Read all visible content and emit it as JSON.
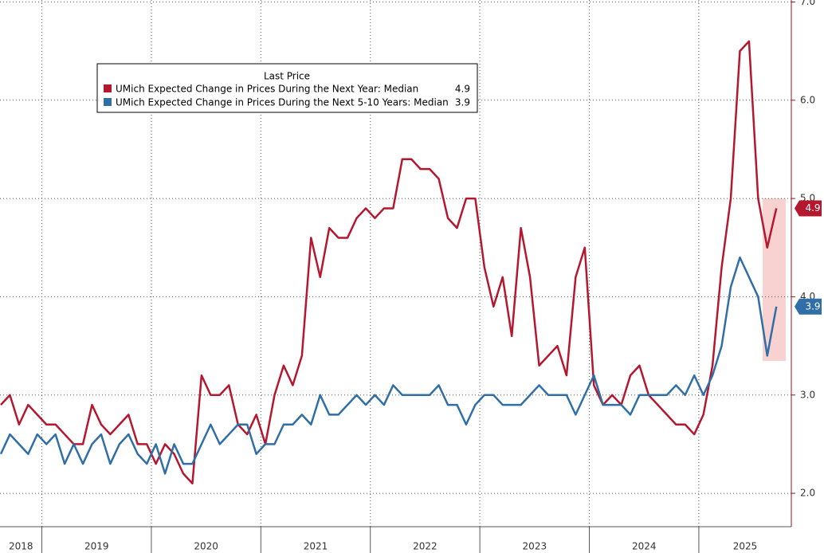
{
  "chart_data": {
    "type": "line",
    "categories": [
      null,
      null,
      null,
      null,
      null,
      null,
      null,
      null,
      null,
      null,
      null,
      null,
      null,
      null,
      null,
      null,
      null,
      null,
      null,
      null,
      null,
      null,
      null,
      null,
      null,
      null,
      null,
      null,
      null,
      null,
      null,
      null,
      null,
      null,
      null,
      null,
      null,
      null,
      null,
      null,
      null,
      null,
      null,
      null,
      null,
      null,
      null,
      null,
      null,
      null,
      null,
      null,
      null,
      null,
      null,
      null,
      null,
      null,
      null,
      null,
      null,
      null,
      null,
      null,
      null,
      null,
      null,
      null,
      null,
      null,
      null,
      null,
      null,
      null,
      null,
      null,
      null,
      null,
      null,
      null,
      null,
      null,
      null,
      null,
      null,
      null
    ],
    "year_labels": [
      "2018",
      "2019",
      "2020",
      "2021",
      "2022",
      "2023",
      "2024",
      "2025"
    ],
    "xticks": [
      5,
      17,
      29,
      41,
      53,
      65,
      77
    ],
    "legend_title": "Last Price",
    "series": [
      {
        "name": "UMich Expected Change in Prices During the Next Year: Median",
        "color": "#b5172f",
        "values": [
          2.9,
          3.0,
          2.7,
          2.9,
          2.8,
          2.7,
          2.7,
          2.6,
          2.5,
          2.5,
          2.9,
          2.7,
          2.6,
          2.7,
          2.8,
          2.5,
          2.5,
          2.3,
          2.5,
          2.4,
          2.2,
          2.1,
          3.2,
          3.0,
          3.0,
          3.1,
          2.7,
          2.6,
          2.8,
          2.5,
          3.0,
          3.3,
          3.1,
          3.4,
          4.6,
          4.2,
          4.7,
          4.6,
          4.6,
          4.8,
          4.9,
          4.8,
          4.9,
          4.9,
          5.4,
          5.4,
          5.3,
          5.3,
          5.2,
          4.8,
          4.7,
          5.0,
          5.0,
          4.3,
          3.9,
          4.2,
          3.6,
          4.7,
          4.2,
          3.3,
          3.4,
          3.5,
          3.2,
          4.2,
          4.5,
          3.1,
          2.9,
          3.0,
          2.9,
          3.2,
          3.3,
          3.0,
          2.9,
          2.8,
          2.7,
          2.7,
          2.6,
          2.8,
          3.3,
          4.3,
          5.0,
          6.5,
          6.6,
          5.0,
          4.5,
          4.9
        ]
      },
      {
        "name": "UMich Expected Change in Prices During the Next 5-10 Years: Median",
        "color": "#2f6ea6",
        "values": [
          2.4,
          2.6,
          2.5,
          2.4,
          2.6,
          2.5,
          2.6,
          2.3,
          2.5,
          2.3,
          2.5,
          2.6,
          2.3,
          2.5,
          2.6,
          2.4,
          2.3,
          2.5,
          2.2,
          2.5,
          2.3,
          2.3,
          2.5,
          2.7,
          2.5,
          2.6,
          2.7,
          2.7,
          2.4,
          2.5,
          2.5,
          2.7,
          2.7,
          2.8,
          2.7,
          3.0,
          2.8,
          2.8,
          2.9,
          3.0,
          2.9,
          3.0,
          2.9,
          3.1,
          3.0,
          3.0,
          3.0,
          3.0,
          3.1,
          2.9,
          2.9,
          2.7,
          2.9,
          3.0,
          3.0,
          2.9,
          2.9,
          2.9,
          3.0,
          3.1,
          3.0,
          3.0,
          3.0,
          2.8,
          3.0,
          3.2,
          2.9,
          2.9,
          2.9,
          2.8,
          3.0,
          3.0,
          3.0,
          3.0,
          3.1,
          3.0,
          3.2,
          3.0,
          3.2,
          3.5,
          4.1,
          4.4,
          4.2,
          4.0,
          3.4,
          3.9
        ]
      }
    ],
    "ylim": [
      1.66,
      7.02
    ],
    "yticks": [
      {
        "value": 2,
        "label": "2.0"
      },
      {
        "value": 3,
        "label": "3.0"
      },
      {
        "value": 4,
        "label": "4.0"
      },
      {
        "value": 5,
        "label": "5.0"
      },
      {
        "value": 6,
        "label": "6.0"
      },
      {
        "value": 7,
        "label": "7.0"
      }
    ],
    "grid": true
  }
}
